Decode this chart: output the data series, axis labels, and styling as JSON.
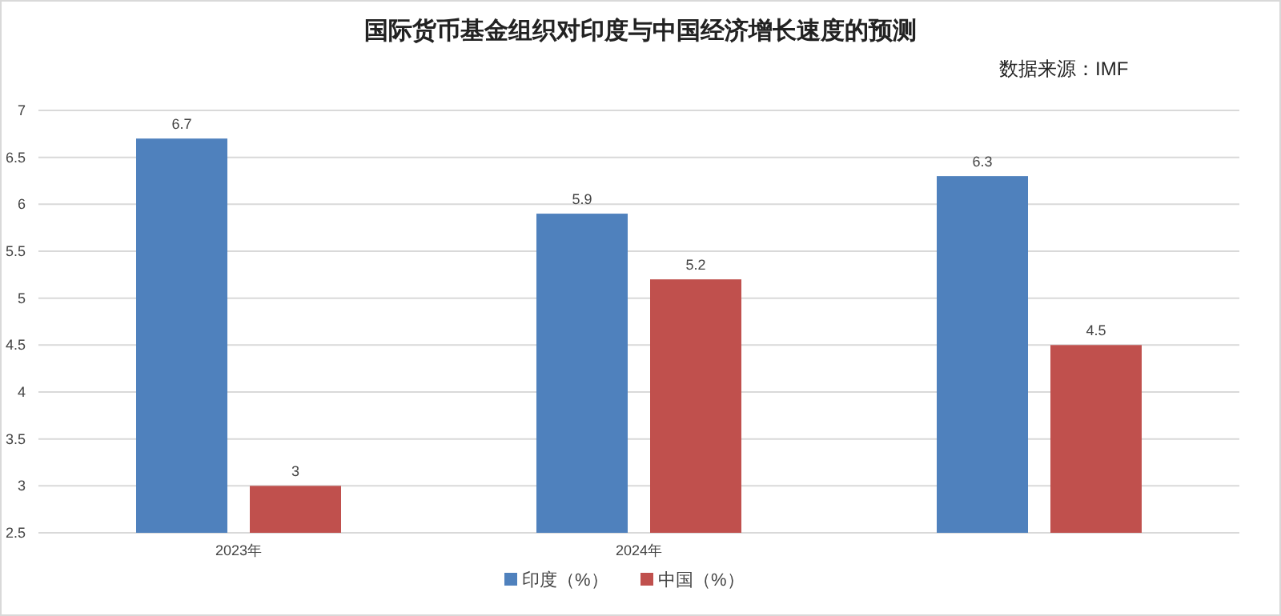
{
  "chart_data": {
    "type": "bar",
    "title": "国际货币基金组织对印度与中国经济增长速度的预测",
    "annotations": [
      "数据来源：IMF"
    ],
    "categories": [
      "2023年",
      "2024年",
      null
    ],
    "series": [
      {
        "name": "印度（%）",
        "color": "#4f81bd",
        "values": [
          6.7,
          5.9,
          6.3
        ]
      },
      {
        "name": "中国（%）",
        "color": "#c0504d",
        "values": [
          3,
          5.2,
          4.5
        ]
      }
    ],
    "ylim": [
      2.5,
      7
    ],
    "yticks": [
      2.5,
      3,
      3.5,
      4,
      4.5,
      5,
      5.5,
      6,
      6.5,
      7
    ],
    "grid": "y",
    "legend": "bottom",
    "data_labels": true
  }
}
